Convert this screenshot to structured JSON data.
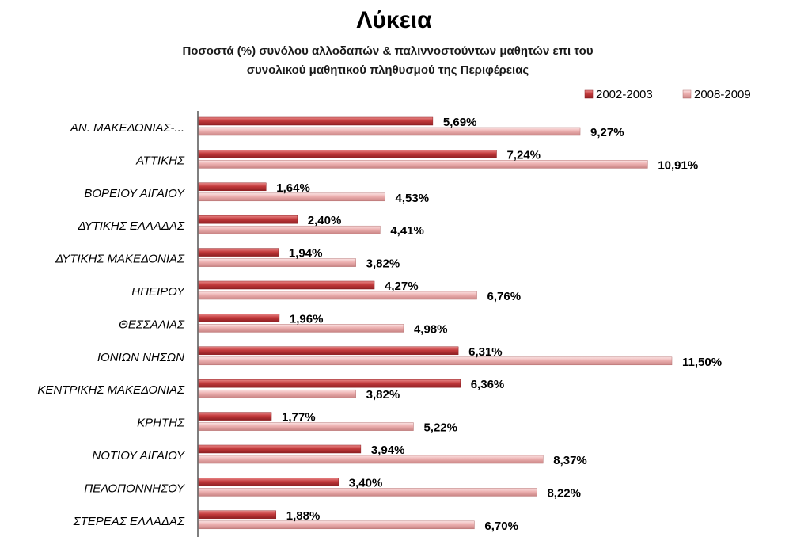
{
  "chart_data": {
    "type": "bar",
    "orientation": "horizontal",
    "title": "Λύκεια",
    "subtitle_lines": [
      "Ποσοστά (%) συνόλου αλλοδαπών & παλιννοστούντων μαθητών επι  του",
      "συνολικού μαθητικού πληθυσμού της Περιφέρειας"
    ],
    "categories": [
      "ΑΝ. ΜΑΚΕΔΟΝΙΑΣ-...",
      "ΑΤΤΙΚΗΣ",
      "ΒΟΡΕΙΟΥ ΑΙΓΑΙΟΥ",
      "ΔΥΤΙΚΗΣ ΕΛΛΑΔΑΣ",
      "ΔΥΤΙΚΗΣ ΜΑΚΕΔΟΝΙΑΣ",
      "ΗΠΕΙΡΟΥ",
      "ΘΕΣΣΑΛΙΑΣ",
      "ΙΟΝΙΩΝ ΝΗΣΩΝ",
      "ΚΕΝΤΡΙΚΗΣ ΜΑΚΕΔΟΝΙΑΣ",
      "ΚΡΗΤΗΣ",
      "ΝΟΤΙΟΥ ΑΙΓΑΙΟΥ",
      "ΠΕΛΟΠΟΝΝΗΣΟΥ",
      "ΣΤΕΡΕΑΣ ΕΛΛΑΔΑΣ"
    ],
    "series": [
      {
        "name": "2002-2003",
        "color": "#c0393b",
        "values": [
          5.69,
          7.24,
          1.64,
          2.4,
          1.94,
          4.27,
          1.96,
          6.31,
          6.36,
          1.77,
          3.94,
          3.4,
          1.88
        ],
        "labels": [
          "5,69%",
          "7,24%",
          "1,64%",
          "2,40%",
          "1,94%",
          "4,27%",
          "1,96%",
          "6,31%",
          "6,36%",
          "1,77%",
          "3,94%",
          "3,40%",
          "1,88%"
        ]
      },
      {
        "name": "2008-2009",
        "color": "#e8a3a3",
        "values": [
          9.27,
          10.91,
          4.53,
          4.41,
          3.82,
          6.76,
          4.98,
          11.5,
          3.82,
          5.22,
          8.37,
          8.22,
          6.7
        ],
        "labels": [
          "9,27%",
          "10,91%",
          "4,53%",
          "4,41%",
          "3,82%",
          "6,76%",
          "4,98%",
          "11,50%",
          "3,82%",
          "5,22%",
          "8,37%",
          "8,22%",
          "6,70%"
        ]
      }
    ],
    "xlim": [
      0,
      12
    ],
    "grid": false,
    "legend_position": "top-right",
    "xaxis_visible": false
  }
}
